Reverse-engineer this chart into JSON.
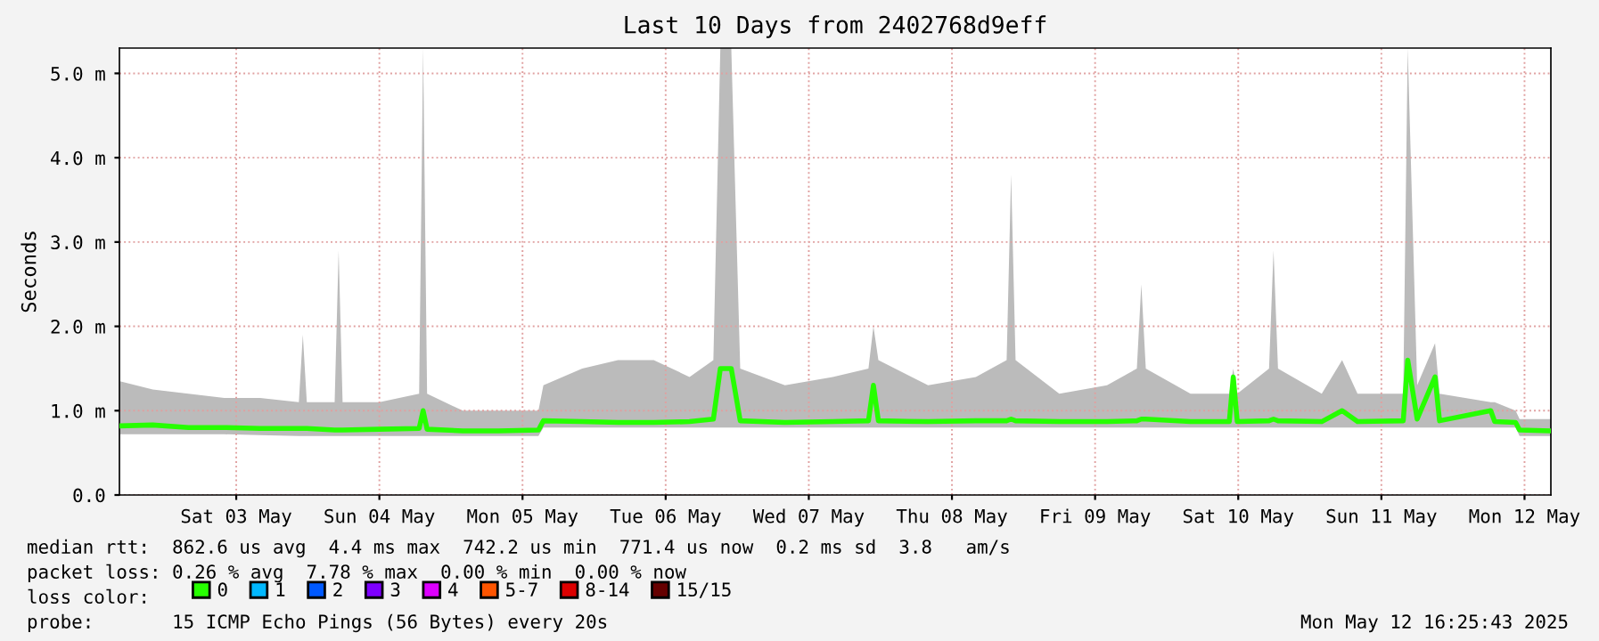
{
  "chart_data": {
    "type": "line",
    "title": "Last 10 Days from 2402768d9eff",
    "ylabel": "Seconds",
    "x": [
      "2025-05-02T16:30",
      "2025-05-02T22:00",
      "2025-05-03T04:00",
      "2025-05-03T10:00",
      "2025-05-03T16:00",
      "2025-05-03T22:30",
      "2025-05-03T23:10",
      "2025-05-03T23:50",
      "2025-05-04T04:30",
      "2025-05-04T05:10",
      "2025-05-04T05:50",
      "2025-05-04T12:00",
      "2025-05-04T18:40",
      "2025-05-04T19:20",
      "2025-05-04T20:00",
      "2025-05-05T02:00",
      "2025-05-05T08:00",
      "2025-05-05T14:40",
      "2025-05-05T15:30",
      "2025-05-05T22:00",
      "2025-05-06T04:00",
      "2025-05-06T10:00",
      "2025-05-06T16:00",
      "2025-05-06T20:00",
      "2025-05-06T21:10",
      "2025-05-06T23:00",
      "2025-05-07T00:30",
      "2025-05-07T08:00",
      "2025-05-07T16:00",
      "2025-05-07T22:00",
      "2025-05-07T22:50",
      "2025-05-07T23:40",
      "2025-05-08T08:00",
      "2025-05-08T16:00",
      "2025-05-08T21:10",
      "2025-05-08T21:55",
      "2025-05-08T22:40",
      "2025-05-09T06:00",
      "2025-05-09T14:00",
      "2025-05-09T19:00",
      "2025-05-09T19:45",
      "2025-05-09T20:30",
      "2025-05-10T04:00",
      "2025-05-10T10:30",
      "2025-05-10T11:10",
      "2025-05-10T11:50",
      "2025-05-10T17:10",
      "2025-05-10T17:55",
      "2025-05-10T18:40",
      "2025-05-11T02:00",
      "2025-05-11T05:25",
      "2025-05-11T08:00",
      "2025-05-11T15:40",
      "2025-05-11T16:25",
      "2025-05-11T18:00",
      "2025-05-11T21:00",
      "2025-05-11T21:45",
      "2025-05-12T06:20",
      "2025-05-12T07:00",
      "2025-05-12T10:30",
      "2025-05-12T11:10",
      "2025-05-12T16:25"
    ],
    "series": [
      {
        "name": "0",
        "color": "#26ff00",
        "values": [
          0.82,
          0.83,
          0.8,
          0.8,
          0.79,
          0.79,
          0.79,
          0.79,
          0.77,
          0.77,
          0.77,
          0.78,
          0.79,
          1.0,
          0.78,
          0.76,
          0.76,
          0.77,
          0.88,
          0.87,
          0.86,
          0.86,
          0.87,
          0.9,
          1.5,
          1.5,
          0.88,
          0.86,
          0.87,
          0.88,
          1.3,
          0.88,
          0.87,
          0.88,
          0.88,
          0.9,
          0.88,
          0.87,
          0.87,
          0.88,
          0.9,
          0.9,
          0.87,
          0.87,
          1.4,
          0.87,
          0.88,
          0.9,
          0.88,
          0.87,
          1.0,
          0.87,
          0.88,
          1.6,
          0.9,
          1.4,
          0.88,
          1.0,
          0.87,
          0.86,
          0.77,
          0.76
        ],
        "lower": [
          0.72,
          0.72,
          0.72,
          0.72,
          0.71,
          0.7,
          0.7,
          0.7,
          0.7,
          0.7,
          0.7,
          0.7,
          0.7,
          0.7,
          0.7,
          0.7,
          0.7,
          0.7,
          0.8,
          0.8,
          0.8,
          0.8,
          0.8,
          0.8,
          0.8,
          0.8,
          0.8,
          0.8,
          0.8,
          0.8,
          0.8,
          0.8,
          0.8,
          0.8,
          0.8,
          0.8,
          0.8,
          0.8,
          0.8,
          0.8,
          0.8,
          0.8,
          0.8,
          0.8,
          0.8,
          0.8,
          0.8,
          0.8,
          0.8,
          0.8,
          0.8,
          0.8,
          0.8,
          0.8,
          0.8,
          0.8,
          0.8,
          0.8,
          0.8,
          0.8,
          0.7,
          0.7
        ],
        "upper": [
          1.35,
          1.25,
          1.2,
          1.15,
          1.15,
          1.1,
          1.9,
          1.1,
          1.1,
          2.9,
          1.1,
          1.1,
          1.2,
          5.3,
          1.2,
          1.0,
          1.0,
          1.0,
          1.3,
          1.5,
          1.6,
          1.6,
          1.4,
          1.6,
          5.3,
          5.3,
          1.5,
          1.3,
          1.4,
          1.5,
          2.0,
          1.6,
          1.3,
          1.4,
          1.6,
          3.8,
          1.6,
          1.2,
          1.3,
          1.5,
          2.5,
          1.5,
          1.2,
          1.2,
          1.5,
          1.2,
          1.5,
          2.9,
          1.5,
          1.2,
          1.6,
          1.2,
          1.2,
          5.3,
          1.3,
          1.8,
          1.2,
          1.1,
          1.1,
          1.0,
          0.9,
          0.9
        ]
      },
      {
        "name": "1",
        "color": "#00b8ff",
        "values": [
          null,
          null,
          null,
          null,
          null,
          null,
          null,
          null,
          null,
          null,
          null,
          null,
          null,
          null,
          null,
          null,
          null,
          null,
          null,
          null,
          null,
          null,
          null,
          null,
          null,
          null,
          null,
          null,
          null,
          null,
          null,
          null,
          null,
          null,
          null,
          null,
          null,
          null,
          null,
          null,
          null,
          null,
          null,
          null,
          null,
          null,
          null,
          null,
          null,
          null,
          null,
          null,
          null,
          null,
          null,
          null,
          null,
          null,
          null,
          null,
          null,
          null
        ]
      },
      {
        "name": "2",
        "color": "#0059ff",
        "values": [
          null,
          null,
          null,
          null,
          null,
          null,
          null,
          null,
          null,
          null,
          null,
          null,
          null,
          null,
          null,
          null,
          null,
          null,
          null,
          null,
          null,
          null,
          null,
          null,
          null,
          null,
          null,
          null,
          null,
          null,
          null,
          null,
          null,
          null,
          null,
          null,
          null,
          null,
          null,
          null,
          null,
          null,
          null,
          null,
          null,
          null,
          null,
          null,
          null,
          null,
          null,
          null,
          null,
          null,
          null,
          null,
          null,
          null,
          null,
          null,
          null,
          null
        ]
      },
      {
        "name": "3",
        "color": "#7e00ff",
        "values": [
          null,
          null,
          null,
          null,
          null,
          null,
          null,
          null,
          null,
          null,
          null,
          null,
          null,
          null,
          null,
          null,
          null,
          null,
          null,
          null,
          null,
          null,
          null,
          null,
          null,
          null,
          null,
          null,
          null,
          null,
          null,
          null,
          null,
          null,
          null,
          null,
          null,
          null,
          null,
          null,
          null,
          null,
          null,
          null,
          null,
          null,
          null,
          null,
          null,
          null,
          null,
          null,
          null,
          null,
          null,
          null,
          null,
          null,
          null,
          null,
          null,
          null
        ]
      },
      {
        "name": "4",
        "color": "#dd00ff",
        "values": [
          null,
          null,
          null,
          null,
          null,
          null,
          null,
          null,
          null,
          null,
          null,
          null,
          null,
          null,
          null,
          null,
          null,
          null,
          null,
          null,
          null,
          null,
          null,
          null,
          null,
          null,
          null,
          null,
          null,
          null,
          null,
          null,
          null,
          null,
          null,
          null,
          null,
          null,
          null,
          null,
          null,
          null,
          null,
          null,
          null,
          null,
          null,
          null,
          null,
          null,
          null,
          null,
          null,
          null,
          null,
          null,
          null,
          null,
          null,
          null,
          null,
          null
        ]
      },
      {
        "name": "5-7",
        "color": "#ff5500",
        "values": [
          null,
          null,
          null,
          null,
          null,
          null,
          null,
          null,
          null,
          null,
          null,
          null,
          null,
          null,
          null,
          null,
          null,
          null,
          null,
          null,
          null,
          null,
          null,
          null,
          null,
          null,
          null,
          null,
          null,
          null,
          null,
          null,
          null,
          null,
          null,
          null,
          null,
          null,
          null,
          null,
          null,
          null,
          null,
          null,
          null,
          null,
          null,
          null,
          null,
          null,
          null,
          null,
          null,
          null,
          null,
          null,
          null,
          null,
          null,
          null,
          null,
          null
        ]
      },
      {
        "name": "8-14",
        "color": "#dd0000",
        "values": [
          null,
          null,
          null,
          null,
          null,
          null,
          null,
          null,
          null,
          null,
          null,
          null,
          null,
          null,
          null,
          null,
          null,
          null,
          null,
          null,
          null,
          null,
          null,
          null,
          null,
          null,
          null,
          null,
          null,
          null,
          null,
          null,
          null,
          null,
          null,
          null,
          null,
          null,
          null,
          null,
          null,
          null,
          null,
          null,
          null,
          null,
          null,
          null,
          null,
          null,
          null,
          null,
          null,
          null,
          null,
          null,
          null,
          null,
          null,
          null,
          null,
          null
        ]
      },
      {
        "name": "15/15",
        "color": "#660000",
        "values": [
          null,
          null,
          null,
          null,
          null,
          null,
          null,
          null,
          null,
          null,
          null,
          null,
          null,
          null,
          null,
          null,
          null,
          null,
          null,
          null,
          null,
          null,
          null,
          null,
          null,
          null,
          null,
          null,
          null,
          null,
          null,
          null,
          null,
          null,
          null,
          null,
          null,
          null,
          null,
          null,
          null,
          null,
          null,
          null,
          null,
          null,
          null,
          null,
          null,
          null,
          null,
          null,
          null,
          null,
          null,
          null,
          null,
          null,
          null,
          null,
          null,
          null
        ]
      }
    ],
    "xlim": [
      "2025-05-02T16:25",
      "2025-05-12T16:25"
    ],
    "xticks": [
      {
        "value": "2025-05-03T12:00",
        "label": "Sat 03 May"
      },
      {
        "value": "2025-05-04T12:00",
        "label": "Sun 04 May"
      },
      {
        "value": "2025-05-05T12:00",
        "label": "Mon 05 May"
      },
      {
        "value": "2025-05-06T12:00",
        "label": "Tue 06 May"
      },
      {
        "value": "2025-05-07T12:00",
        "label": "Wed 07 May"
      },
      {
        "value": "2025-05-08T12:00",
        "label": "Thu 08 May"
      },
      {
        "value": "2025-05-09T12:00",
        "label": "Fri 09 May"
      },
      {
        "value": "2025-05-10T12:00",
        "label": "Sat 10 May"
      },
      {
        "value": "2025-05-11T12:00",
        "label": "Sun 11 May"
      },
      {
        "value": "2025-05-12T12:00",
        "label": "Mon 12 May"
      }
    ],
    "ylim": [
      0,
      5.3
    ],
    "yticks": [
      {
        "value": 0,
        "label": "0.0"
      },
      {
        "value": 1,
        "label": "1.0 m"
      },
      {
        "value": 2,
        "label": "2.0 m"
      },
      {
        "value": 3,
        "label": "3.0 m"
      },
      {
        "value": 4,
        "label": "4.0 m"
      },
      {
        "value": 5,
        "label": "5.0 m"
      }
    ],
    "grid": true,
    "legend": "bottom left",
    "annotations": [
      "median rtt:  862.6 us avg  4.4 ms max  742.2 us min  771.4 us now  0.2 ms sd  3.8   am/s",
      "packet loss: 0.26 % avg  7.78 % max  0.00 % min  0.00 % now",
      "loss color:",
      "probe:       15 ICMP Echo Pings (56 Bytes) every 20s",
      "Mon May 12 16:25:43 2025"
    ]
  }
}
